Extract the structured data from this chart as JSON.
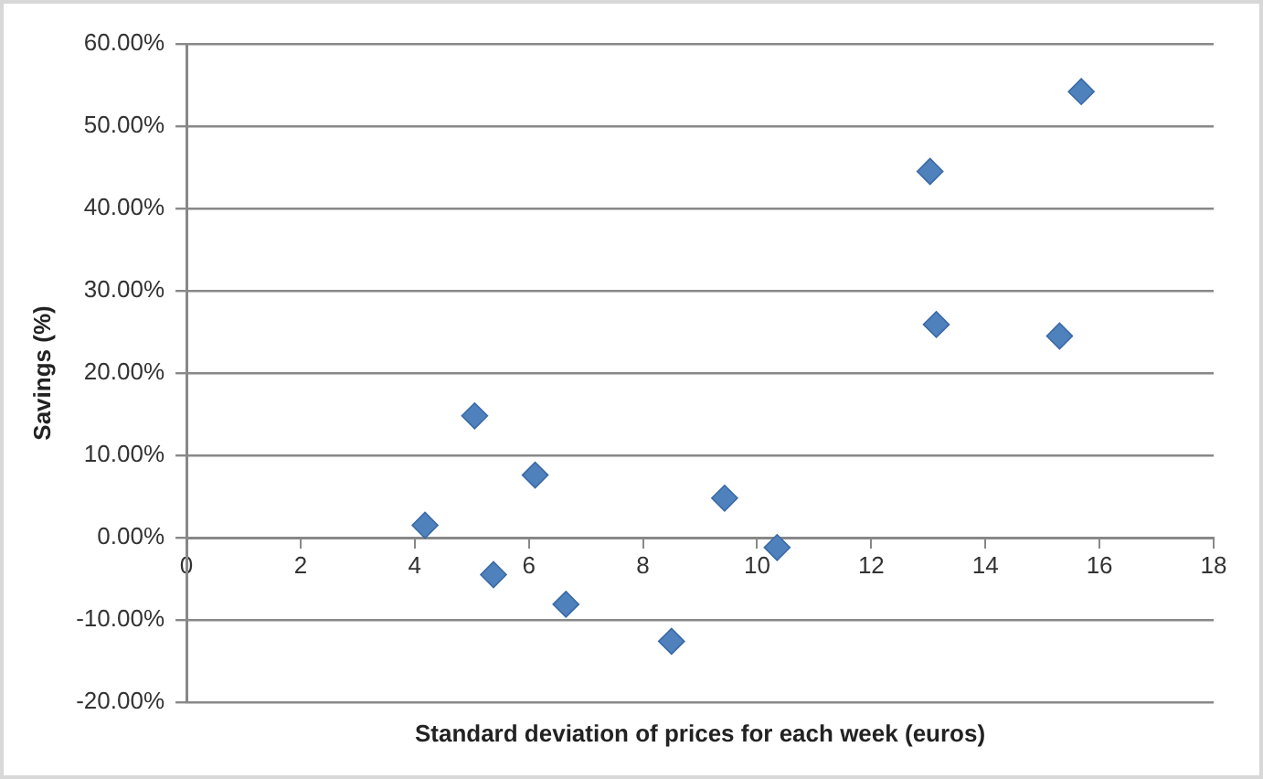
{
  "chart_data": {
    "type": "scatter",
    "xlabel": "Standard deviation of prices for each week (euros)",
    "ylabel": "Savings (%)",
    "x": [
      4.18,
      5.05,
      5.38,
      6.11,
      6.65,
      8.5,
      9.43,
      10.35,
      13.03,
      13.14,
      15.3,
      15.68
    ],
    "values": [
      1.5,
      14.8,
      -4.5,
      7.6,
      -8.1,
      -12.6,
      4.8,
      -1.2,
      44.5,
      25.9,
      24.5,
      54.2
    ],
    "color": "#4f81bd",
    "marker": "diamond",
    "grid": "y",
    "legend": false,
    "xlim": [
      0,
      18
    ],
    "xticks": [
      0,
      2,
      4,
      6,
      8,
      10,
      12,
      14,
      16,
      18
    ],
    "ylim": [
      -20,
      60
    ],
    "yticks": [
      {
        "value": -20,
        "label": "-20.00%"
      },
      {
        "value": -10,
        "label": "-10.00%"
      },
      {
        "value": 0,
        "label": "0.00%"
      },
      {
        "value": 10,
        "label": "10.00%"
      },
      {
        "value": 20,
        "label": "20.00%"
      },
      {
        "value": 30,
        "label": "30.00%"
      },
      {
        "value": 40,
        "label": "40.00%"
      },
      {
        "value": 50,
        "label": "50.00%"
      },
      {
        "value": 60,
        "label": "60.00%"
      }
    ]
  }
}
